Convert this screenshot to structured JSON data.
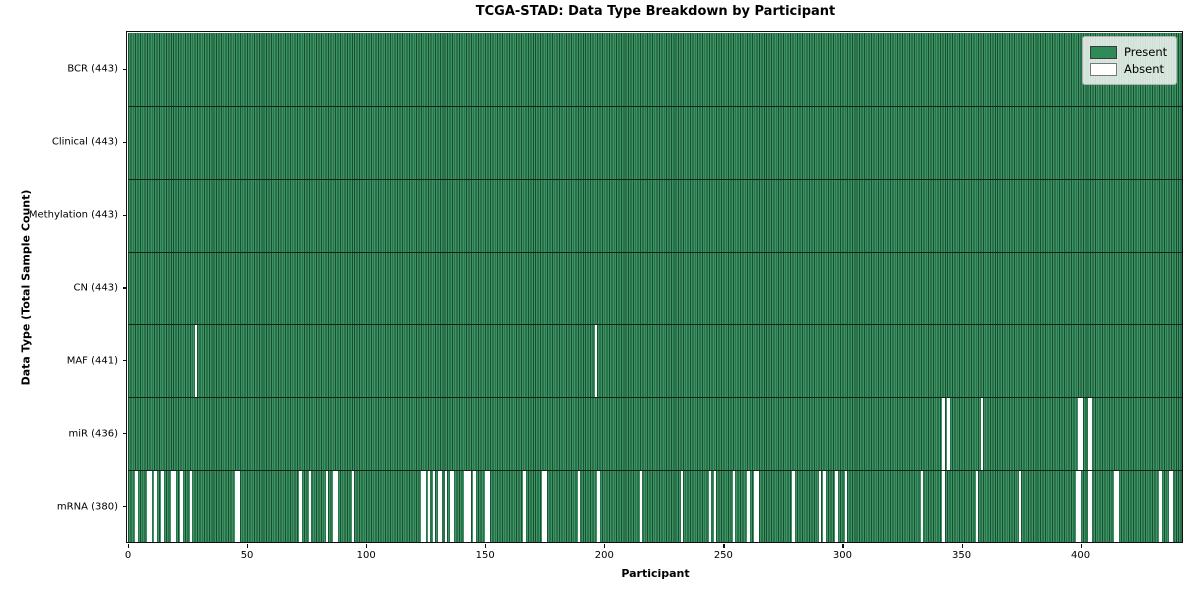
{
  "window": {
    "title": "TCGA-STAD: Data Type Breakdown by Participant"
  },
  "chart_data": {
    "type": "heatmap",
    "title": "TCGA-STAD: Data Type Breakdown by Participant",
    "xlabel": "Participant",
    "ylabel": "Data Type (Total Sample Count)",
    "n_participants": 443,
    "x_ticks": [
      0,
      50,
      100,
      150,
      200,
      250,
      300,
      350,
      400
    ],
    "grid": false,
    "legend": {
      "position": "upper right",
      "entries": [
        {
          "label": "Present",
          "color": "#2e8b57"
        },
        {
          "label": "Absent",
          "color": "#ffffff"
        }
      ]
    },
    "colors": {
      "present": "#2e8b57",
      "present_face": "#3e9366",
      "bar_edge": "#17502f",
      "absent": "#ffffff",
      "axis": "#101010"
    },
    "rows": [
      {
        "id": "bcr",
        "label": "BCR (443)",
        "present_count": 443,
        "absent": []
      },
      {
        "id": "clinical",
        "label": "Clinical (443)",
        "present_count": 443,
        "absent": []
      },
      {
        "id": "methylation",
        "label": "Methylation (443)",
        "present_count": 443,
        "absent": []
      },
      {
        "id": "cn",
        "label": "CN (443)",
        "present_count": 443,
        "absent": []
      },
      {
        "id": "maf",
        "label": "MAF (441)",
        "present_count": 441,
        "absent": [
          28,
          196
        ]
      },
      {
        "id": "mir",
        "label": "miR (436)",
        "present_count": 436,
        "absent": [
          342,
          344,
          358,
          399,
          400,
          403,
          404
        ]
      },
      {
        "id": "mrna",
        "label": "mRNA (380)",
        "present_count": 380,
        "absent": [
          3,
          8,
          9,
          11,
          14,
          18,
          19,
          22,
          26,
          45,
          46,
          72,
          76,
          83,
          86,
          87,
          94,
          123,
          124,
          126,
          128,
          130,
          131,
          133,
          135,
          136,
          141,
          142,
          143,
          145,
          150,
          151,
          166,
          174,
          175,
          189,
          197,
          215,
          232,
          244,
          246,
          254,
          260,
          263,
          264,
          279,
          290,
          292,
          297,
          301,
          333,
          342,
          356,
          374,
          398,
          399,
          403,
          404,
          414,
          415,
          433,
          437,
          438
        ]
      }
    ]
  }
}
